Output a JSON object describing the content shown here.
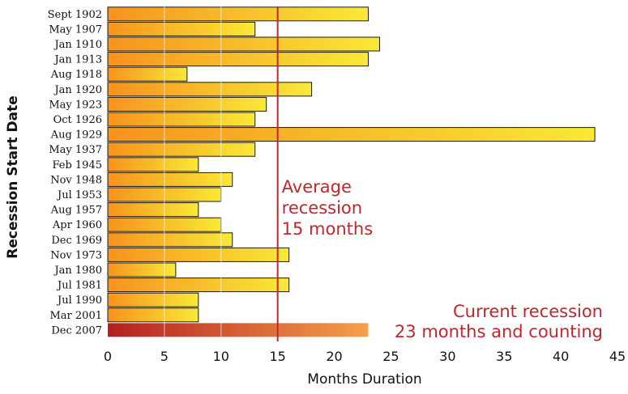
{
  "chart_data": {
    "type": "bar",
    "orientation": "horizontal",
    "categories": [
      "Sept 1902",
      "May 1907",
      "Jan 1910",
      "Jan 1913",
      "Aug 1918",
      "Jan 1920",
      "May 1923",
      "Oct 1926",
      "Aug 1929",
      "May 1937",
      "Feb 1945",
      "Nov 1948",
      "Jul 1953",
      "Aug 1957",
      "Apr 1960",
      "Dec 1969",
      "Nov 1973",
      "Jan 1980",
      "Jul 1981",
      "Jul 1990",
      "Mar 2001",
      "Dec 2007"
    ],
    "values": [
      23,
      13,
      24,
      23,
      7,
      18,
      14,
      13,
      43,
      13,
      8,
      11,
      10,
      8,
      10,
      11,
      16,
      6,
      16,
      8,
      8,
      23
    ],
    "xlabel": "Months Duration",
    "ylabel": "Recession Start Date",
    "xlim": [
      0,
      45
    ],
    "xticks": [
      0,
      5,
      10,
      15,
      20,
      25,
      30,
      35,
      40,
      45
    ],
    "grid": "vertical",
    "reference_line": {
      "value": 15,
      "label_lines": [
        "Average",
        "recession",
        "15 months"
      ]
    },
    "highlight": {
      "category": "Dec 2007",
      "label_lines": [
        "Current recession",
        "23 months and counting"
      ]
    },
    "colors": {
      "bar_start": "#f7931e",
      "bar_end": "#f9e936",
      "current_start": "#b41f20",
      "current_end": "#f5a04a",
      "annotation": "#c1272d"
    }
  }
}
